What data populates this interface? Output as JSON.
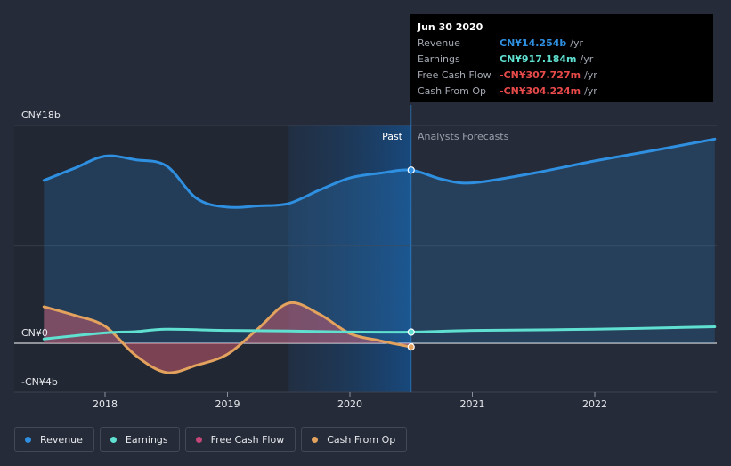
{
  "chart_data": {
    "type": "line",
    "x_axis": {
      "ticks": [
        "2018",
        "2019",
        "2020",
        "2021",
        "2022"
      ]
    },
    "y_axis": {
      "max_label": "CN¥18b",
      "zero_label": "CN¥0",
      "min_label": "-CN¥4b",
      "range": [
        -4,
        18
      ],
      "unit": "CN¥ billions"
    },
    "sections": {
      "past_label": "Past",
      "forecast_label": "Analysts Forecasts",
      "split_date": 2020.5
    },
    "highlight_x": 2020.5,
    "series": [
      {
        "name": "Revenue",
        "key": "revenue",
        "color": "#2f8fe0",
        "area": true,
        "points": [
          [
            2017.5,
            13.4
          ],
          [
            2017.75,
            14.4
          ],
          [
            2018.0,
            15.4
          ],
          [
            2018.25,
            15.1
          ],
          [
            2018.5,
            14.6
          ],
          [
            2018.75,
            11.9
          ],
          [
            2019.0,
            11.2
          ],
          [
            2019.25,
            11.3
          ],
          [
            2019.5,
            11.5
          ],
          [
            2019.75,
            12.6
          ],
          [
            2020.0,
            13.6
          ],
          [
            2020.25,
            14.0
          ],
          [
            2020.5,
            14.25
          ],
          [
            2020.75,
            13.5
          ],
          [
            2021.0,
            13.2
          ],
          [
            2021.5,
            14.0
          ],
          [
            2022.0,
            15.0
          ],
          [
            2022.5,
            15.9
          ],
          [
            2022.98,
            16.8
          ]
        ]
      },
      {
        "name": "Earnings",
        "key": "earnings",
        "color": "#5fe0d0",
        "area": false,
        "points": [
          [
            2017.5,
            0.35
          ],
          [
            2018.0,
            0.85
          ],
          [
            2018.25,
            0.95
          ],
          [
            2018.5,
            1.15
          ],
          [
            2019.0,
            1.05
          ],
          [
            2019.5,
            1.0
          ],
          [
            2020.0,
            0.92
          ],
          [
            2020.5,
            0.917
          ],
          [
            2021.0,
            1.05
          ],
          [
            2022.0,
            1.15
          ],
          [
            2022.98,
            1.35
          ]
        ]
      },
      {
        "name": "Free Cash Flow",
        "key": "fcf",
        "color": "#c54678",
        "area": true,
        "points": [
          [
            2017.5,
            3.0
          ],
          [
            2017.75,
            2.3
          ],
          [
            2018.0,
            1.4
          ],
          [
            2018.25,
            -1.0
          ],
          [
            2018.5,
            -2.4
          ],
          [
            2018.75,
            -1.8
          ],
          [
            2019.0,
            -0.9
          ],
          [
            2019.25,
            1.2
          ],
          [
            2019.5,
            3.3
          ],
          [
            2019.75,
            2.4
          ],
          [
            2020.0,
            0.8
          ],
          [
            2020.25,
            0.2
          ],
          [
            2020.5,
            -0.31
          ]
        ]
      },
      {
        "name": "Cash From Op",
        "key": "cfo",
        "color": "#e3a25d",
        "area": true,
        "points": [
          [
            2017.5,
            3.0
          ],
          [
            2017.75,
            2.3
          ],
          [
            2018.0,
            1.4
          ],
          [
            2018.25,
            -1.0
          ],
          [
            2018.5,
            -2.4
          ],
          [
            2018.75,
            -1.8
          ],
          [
            2019.0,
            -0.9
          ],
          [
            2019.25,
            1.2
          ],
          [
            2019.5,
            3.3
          ],
          [
            2019.75,
            2.4
          ],
          [
            2020.0,
            0.8
          ],
          [
            2020.25,
            0.2
          ],
          [
            2020.5,
            -0.3
          ]
        ]
      }
    ]
  },
  "tooltip": {
    "date": "Jun 30 2020",
    "rows": [
      {
        "label": "Revenue",
        "value": "CN¥14.254b",
        "unit": "/yr",
        "color": "#2f8fe0"
      },
      {
        "label": "Earnings",
        "value": "CN¥917.184m",
        "unit": "/yr",
        "color": "#5fe0d0"
      },
      {
        "label": "Free Cash Flow",
        "value": "-CN¥307.727m",
        "unit": "/yr",
        "color": "#e84a4a"
      },
      {
        "label": "Cash From Op",
        "value": "-CN¥304.224m",
        "unit": "/yr",
        "color": "#e84a4a"
      }
    ]
  },
  "legend": [
    {
      "label": "Revenue",
      "color": "#2f8fe0"
    },
    {
      "label": "Earnings",
      "color": "#5fe0d0"
    },
    {
      "label": "Free Cash Flow",
      "color": "#c54678"
    },
    {
      "label": "Cash From Op",
      "color": "#e3a25d"
    }
  ]
}
